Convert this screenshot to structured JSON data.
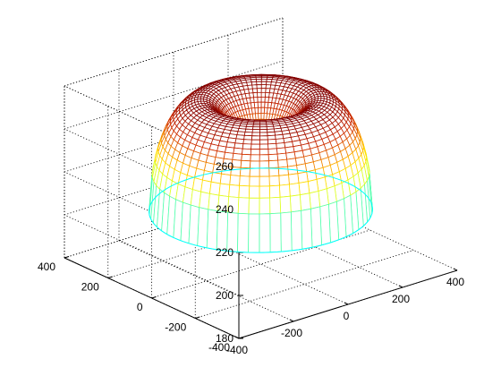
{
  "chart_data": {
    "type": "surface",
    "title": "",
    "xlabel": "",
    "ylabel": "",
    "zlabel": "",
    "style": "wireframe mesh, jet-like colormap by height",
    "grid": true,
    "box": true,
    "xlim": [
      -400,
      400
    ],
    "ylim": [
      -400,
      400
    ],
    "zlim": [
      180,
      260
    ],
    "x_ticks": [
      -400,
      -200,
      0,
      200,
      400
    ],
    "y_ticks": [
      -400,
      -200,
      0,
      200,
      400
    ],
    "z_ticks": [
      180,
      200,
      220,
      240,
      260
    ],
    "tick_labels": {
      "x": [
        "-400",
        "-200",
        "0",
        "200",
        "400"
      ],
      "y": [
        "-400",
        "-200",
        "0",
        "200",
        "400"
      ],
      "z": [
        "180",
        "200",
        "220",
        "240",
        "260"
      ]
    },
    "surface": {
      "shape": "torus-like dome with central dimple",
      "outer_radius": 320,
      "ridge_radius": 170,
      "inner_hole_radius": 60,
      "base_z": 205,
      "peak_z": 257,
      "center_z": 238,
      "mesh_rings": 30,
      "mesh_spokes": 64
    }
  }
}
